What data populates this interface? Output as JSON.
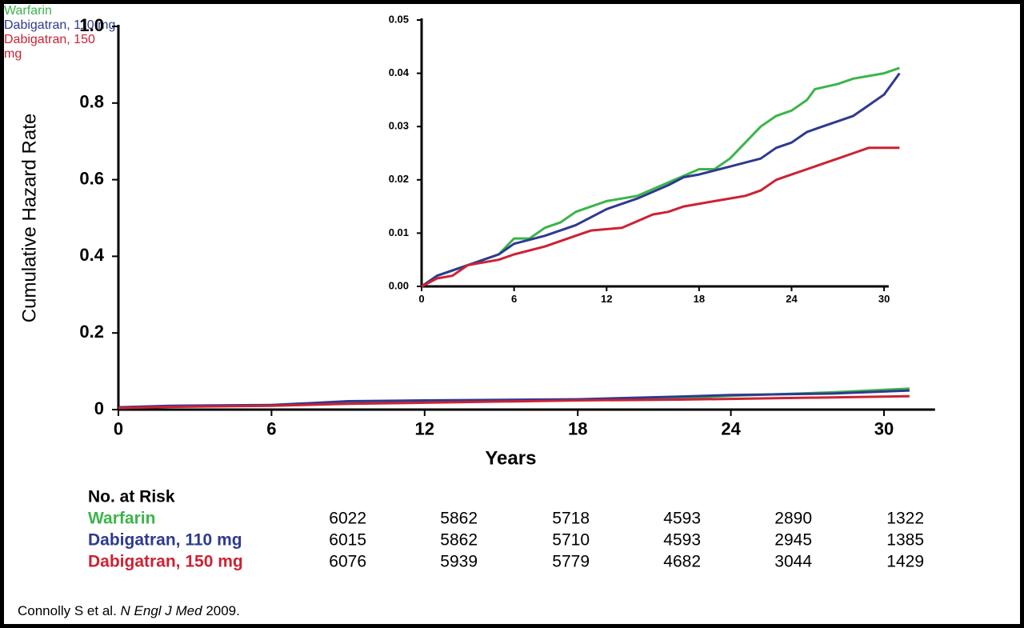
{
  "chart_data": [
    {
      "type": "line",
      "x_label": "Years",
      "y_label": "Cumulative Hazard Rate",
      "xlim": [
        0,
        32
      ],
      "xticks": [
        0,
        6,
        12,
        18,
        24,
        30
      ],
      "ylim": [
        0,
        1
      ],
      "yticks": [
        0,
        0.2,
        0.4,
        0.6,
        0.8,
        {
          "value": 1,
          "label": "1.0"
        }
      ],
      "x": [
        0,
        2,
        6,
        9,
        12,
        18,
        22,
        24,
        28,
        31
      ],
      "series": [
        {
          "color": "#3cb44b",
          "values": [
            0.005,
            0.008,
            0.012,
            0.018,
            0.022,
            0.026,
            0.03,
            0.036,
            0.045,
            0.055
          ]
        },
        {
          "color": "#2e3a8f",
          "values": [
            0.006,
            0.01,
            0.012,
            0.022,
            0.024,
            0.027,
            0.034,
            0.038,
            0.042,
            0.05
          ]
        },
        {
          "color": "#cc2233",
          "values": [
            0.004,
            0.007,
            0.01,
            0.015,
            0.018,
            0.024,
            0.026,
            0.028,
            0.032,
            0.035
          ]
        }
      ]
    },
    {
      "type": "line",
      "xlim": [
        0,
        30.3
      ],
      "xticks": [
        0,
        6,
        12,
        18,
        24,
        30
      ],
      "ylim": [
        0,
        0.05
      ],
      "yticks": [
        {
          "value": 0,
          "label": "0.00"
        },
        {
          "value": 0.01,
          "label": "0.01"
        },
        {
          "value": 0.02,
          "label": "0.02"
        },
        {
          "value": 0.03,
          "label": "0.03"
        },
        {
          "value": 0.04,
          "label": "0.04"
        },
        {
          "value": 0.05,
          "label": "0.05"
        }
      ],
      "series": [
        {
          "name": "Warfarin",
          "color": "#3cb44b",
          "x": [
            0,
            1,
            3,
            5,
            6,
            7,
            8,
            9,
            10,
            11,
            12,
            14,
            16,
            18,
            19,
            20,
            21,
            22,
            23,
            24,
            25,
            25.5,
            27,
            28,
            30,
            31
          ],
          "values": [
            0,
            0.002,
            0.004,
            0.006,
            0.009,
            0.009,
            0.011,
            0.012,
            0.014,
            0.015,
            0.016,
            0.017,
            0.0195,
            0.022,
            0.022,
            0.024,
            0.027,
            0.03,
            0.032,
            0.033,
            0.035,
            0.037,
            0.038,
            0.039,
            0.04,
            0.041
          ]
        },
        {
          "name": "Dabigatran, 110 mg",
          "color": "#2e3a8f",
          "x": [
            0,
            1,
            3,
            5,
            6,
            8,
            10,
            11,
            12,
            14,
            16,
            17,
            18,
            20,
            22,
            23,
            24,
            25,
            26,
            28,
            29,
            30,
            31
          ],
          "values": [
            0,
            0.002,
            0.004,
            0.006,
            0.008,
            0.0095,
            0.0115,
            0.013,
            0.0145,
            0.0165,
            0.019,
            0.0205,
            0.021,
            0.0225,
            0.024,
            0.026,
            0.027,
            0.029,
            0.03,
            0.032,
            0.034,
            0.036,
            0.04
          ]
        },
        {
          "name": "Dabigatran, 150 mg",
          "color": "#cc2233",
          "x": [
            0,
            1,
            2,
            3,
            5,
            6,
            8,
            10,
            11,
            13,
            15,
            16,
            17,
            19,
            20,
            21,
            22,
            23,
            24,
            25,
            26,
            27,
            28,
            29,
            31
          ],
          "values": [
            0,
            0.0015,
            0.002,
            0.004,
            0.005,
            0.006,
            0.0075,
            0.0095,
            0.0105,
            0.011,
            0.0135,
            0.014,
            0.015,
            0.016,
            0.0165,
            0.017,
            0.018,
            0.02,
            0.021,
            0.022,
            0.023,
            0.024,
            0.025,
            0.026,
            0.026
          ]
        }
      ]
    }
  ],
  "risk_table": {
    "title": "No. at Risk",
    "rows": [
      {
        "name": "Warfarin",
        "color": "#3cb44b",
        "values": [
          6022,
          5862,
          5718,
          4593,
          2890,
          1322
        ]
      },
      {
        "name": "Dabigatran, 110 mg",
        "color": "#2e3a8f",
        "values": [
          6015,
          5862,
          5710,
          4593,
          2945,
          1385
        ]
      },
      {
        "name": "Dabigatran, 150 mg",
        "color": "#cc2233",
        "values": [
          6076,
          5939,
          5779,
          4682,
          3044,
          1429
        ]
      }
    ]
  },
  "source": {
    "authors": "Connolly S et al.",
    "journal": "N Engl J Med",
    "year": "2009."
  }
}
